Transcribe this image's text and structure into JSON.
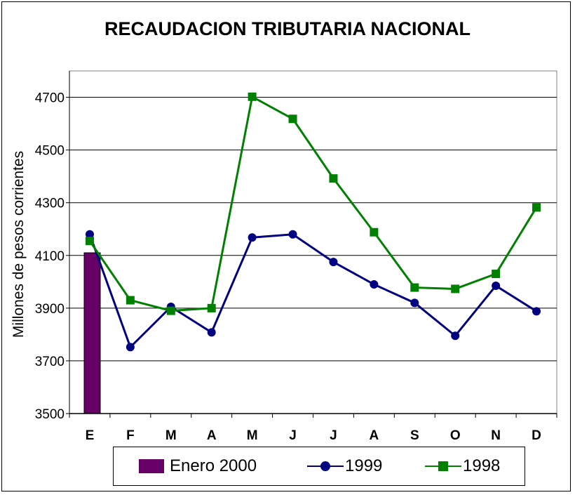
{
  "chart_data": {
    "type": "line",
    "title": "RECAUDACION TRIBUTARIA NACIONAL",
    "xlabel": "",
    "ylabel": "Millones de pesos corrientes",
    "categories": [
      "E",
      "F",
      "M",
      "A",
      "M",
      "J",
      "J",
      "A",
      "S",
      "O",
      "N",
      "D"
    ],
    "ylim": [
      3500,
      4700
    ],
    "yticks": [
      3500,
      3700,
      3900,
      4100,
      4300,
      4500,
      4700
    ],
    "grid": true,
    "legend_position": "bottom",
    "bar_series": {
      "name": "Enero 2000",
      "color": "#660066",
      "values": [
        4110,
        null,
        null,
        null,
        null,
        null,
        null,
        null,
        null,
        null,
        null,
        null
      ]
    },
    "series": [
      {
        "name": "1999",
        "color": "#000080",
        "marker": "circle",
        "values": [
          4180,
          3752,
          3905,
          3808,
          4168,
          4180,
          4075,
          3990,
          3920,
          3795,
          3985,
          3888
        ]
      },
      {
        "name": "1998",
        "color": "#008000",
        "marker": "square",
        "values": [
          4155,
          3930,
          3890,
          3900,
          4702,
          4618,
          4392,
          4188,
          3978,
          3973,
          4030,
          4282
        ]
      }
    ]
  }
}
